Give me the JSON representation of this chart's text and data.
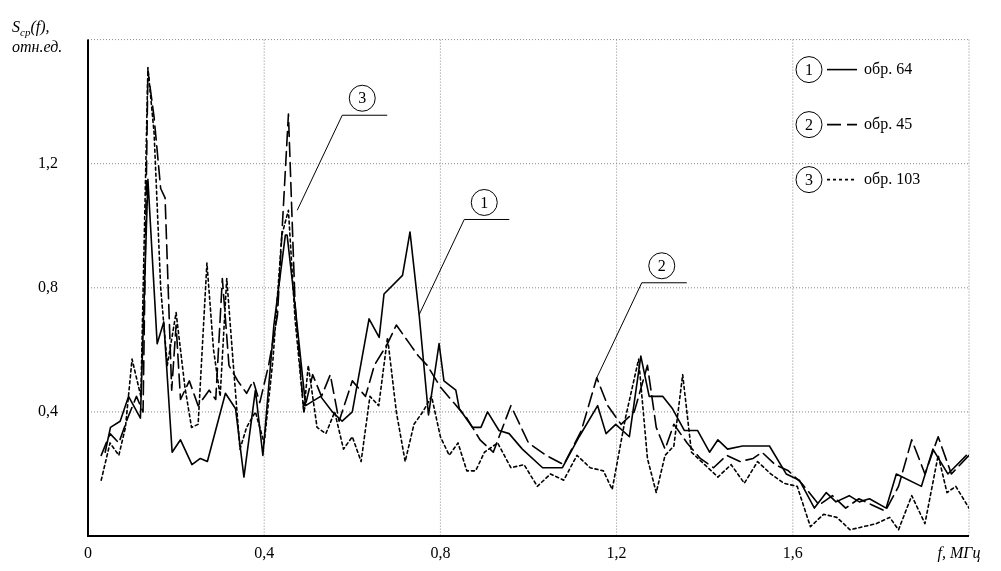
{
  "chart_data": {
    "type": "line",
    "xlabel": "f, МГц",
    "ylabel": "S$_{ср}$(f), отн.ед.",
    "xlim": [
      0,
      2.0
    ],
    "ylim": [
      0,
      1.6
    ],
    "xticks": [
      0,
      {
        "value": 0.4,
        "label": "0,4"
      },
      {
        "value": 0.8,
        "label": "0,8"
      },
      {
        "value": 1.2,
        "label": "1,2"
      },
      {
        "value": 1.6,
        "label": "1,6"
      },
      {
        "value": 2.0,
        "label": null
      }
    ],
    "yticks": [
      {
        "value": 0.4,
        "label": "0,4"
      },
      {
        "value": 0.8,
        "label": "0,8"
      },
      {
        "value": 1.2,
        "label": "1,2"
      },
      {
        "value": 1.6,
        "label": null
      }
    ],
    "grid": true,
    "legend": "top right",
    "marker": "none",
    "series": [
      {
        "name": "обр. 64",
        "color": "#000000",
        "line_style": "solid",
        "x": [
          0.039,
          0.051,
          0.073,
          0.092,
          0.119,
          0.136,
          0.157,
          0.172,
          0.191,
          0.21,
          0.236,
          0.255,
          0.271,
          0.312,
          0.335,
          0.354,
          0.38,
          0.397,
          0.422,
          0.448,
          0.452,
          0.471,
          0.494,
          0.528,
          0.555,
          0.577,
          0.6,
          0.638,
          0.661,
          0.672,
          0.714,
          0.731,
          0.752,
          0.773,
          0.797,
          0.808,
          0.835,
          0.843,
          0.873,
          0.892,
          0.907,
          0.933,
          0.956,
          0.986,
          1.032,
          1.077,
          1.115,
          1.157,
          1.176,
          1.198,
          1.229,
          1.255,
          1.274,
          1.305,
          1.327,
          1.354,
          1.384,
          1.411,
          1.43,
          1.452,
          1.486,
          1.517,
          1.547,
          1.585,
          1.615,
          1.649,
          1.676,
          1.698,
          1.728,
          1.751,
          1.774,
          1.812,
          1.835,
          1.892,
          1.918,
          1.952,
          1.994
        ],
        "values": [
          0.27,
          0.35,
          0.37,
          0.45,
          0.38,
          1.15,
          0.62,
          0.69,
          0.27,
          0.31,
          0.23,
          0.25,
          0.24,
          0.46,
          0.41,
          0.19,
          0.47,
          0.26,
          0.68,
          0.97,
          0.97,
          0.73,
          0.42,
          0.45,
          0.4,
          0.37,
          0.4,
          0.7,
          0.64,
          0.78,
          0.84,
          0.98,
          0.71,
          0.39,
          0.62,
          0.5,
          0.47,
          0.41,
          0.35,
          0.35,
          0.4,
          0.34,
          0.33,
          0.28,
          0.22,
          0.22,
          0.32,
          0.42,
          0.33,
          0.36,
          0.32,
          0.58,
          0.45,
          0.45,
          0.41,
          0.34,
          0.34,
          0.27,
          0.31,
          0.28,
          0.29,
          0.29,
          0.29,
          0.2,
          0.18,
          0.09,
          0.14,
          0.11,
          0.13,
          0.11,
          0.12,
          0.09,
          0.2,
          0.16,
          0.28,
          0.2,
          0.26
        ]
      },
      {
        "name": "обр. 45",
        "color": "#000000",
        "line_style": "dashed",
        "x": [
          0.03,
          0.05,
          0.07,
          0.09,
          0.11,
          0.125,
          0.136,
          0.15,
          0.165,
          0.175,
          0.19,
          0.2,
          0.21,
          0.23,
          0.25,
          0.275,
          0.29,
          0.305,
          0.32,
          0.34,
          0.36,
          0.375,
          0.39,
          0.41,
          0.43,
          0.455,
          0.47,
          0.49,
          0.51,
          0.53,
          0.55,
          0.57,
          0.6,
          0.63,
          0.65,
          0.68,
          0.7,
          0.73,
          0.75,
          0.77,
          0.8,
          0.83,
          0.86,
          0.89,
          0.92,
          0.96,
          1.0,
          1.04,
          1.08,
          1.12,
          1.155,
          1.18,
          1.21,
          1.24,
          1.27,
          1.29,
          1.31,
          1.33,
          1.36,
          1.39,
          1.42,
          1.45,
          1.48,
          1.51,
          1.53,
          1.56,
          1.59,
          1.62,
          1.66,
          1.69,
          1.72,
          1.75,
          1.78,
          1.81,
          1.84,
          1.87,
          1.9,
          1.93,
          1.96,
          2.0
        ],
        "values": [
          0.26,
          0.33,
          0.3,
          0.38,
          0.45,
          0.4,
          1.5,
          1.35,
          1.12,
          1.09,
          0.47,
          0.68,
          0.44,
          0.5,
          0.42,
          0.47,
          0.44,
          0.83,
          0.55,
          0.5,
          0.46,
          0.5,
          0.43,
          0.55,
          0.71,
          1.36,
          0.75,
          0.4,
          0.52,
          0.45,
          0.52,
          0.37,
          0.5,
          0.45,
          0.55,
          0.62,
          0.68,
          0.62,
          0.58,
          0.55,
          0.48,
          0.43,
          0.38,
          0.31,
          0.27,
          0.42,
          0.3,
          0.26,
          0.23,
          0.34,
          0.51,
          0.42,
          0.36,
          0.4,
          0.55,
          0.35,
          0.28,
          0.36,
          0.3,
          0.25,
          0.22,
          0.26,
          0.24,
          0.25,
          0.27,
          0.23,
          0.21,
          0.17,
          0.1,
          0.13,
          0.09,
          0.12,
          0.1,
          0.08,
          0.16,
          0.31,
          0.2,
          0.32,
          0.2,
          0.26
        ]
      },
      {
        "name": "обр. 103",
        "color": "#000000",
        "line_style": "dotted",
        "x": [
          0.03,
          0.05,
          0.07,
          0.085,
          0.1,
          0.12,
          0.136,
          0.15,
          0.165,
          0.18,
          0.2,
          0.22,
          0.235,
          0.25,
          0.27,
          0.285,
          0.3,
          0.315,
          0.33,
          0.345,
          0.36,
          0.38,
          0.4,
          0.42,
          0.44,
          0.455,
          0.47,
          0.49,
          0.5,
          0.52,
          0.54,
          0.56,
          0.58,
          0.6,
          0.62,
          0.64,
          0.66,
          0.68,
          0.7,
          0.72,
          0.74,
          0.76,
          0.78,
          0.8,
          0.82,
          0.84,
          0.86,
          0.88,
          0.9,
          0.93,
          0.96,
          0.99,
          1.02,
          1.05,
          1.08,
          1.11,
          1.14,
          1.17,
          1.19,
          1.22,
          1.25,
          1.27,
          1.29,
          1.31,
          1.33,
          1.35,
          1.37,
          1.4,
          1.43,
          1.46,
          1.49,
          1.52,
          1.55,
          1.58,
          1.61,
          1.64,
          1.67,
          1.7,
          1.73,
          1.76,
          1.79,
          1.82,
          1.84,
          1.87,
          1.9,
          1.93,
          1.95,
          1.97,
          2.0
        ],
        "values": [
          0.18,
          0.3,
          0.26,
          0.35,
          0.57,
          0.45,
          1.51,
          1.3,
          0.8,
          0.55,
          0.72,
          0.48,
          0.35,
          0.36,
          0.88,
          0.6,
          0.45,
          0.83,
          0.55,
          0.28,
          0.35,
          0.4,
          0.3,
          0.57,
          0.97,
          1.05,
          0.7,
          0.4,
          0.55,
          0.35,
          0.33,
          0.4,
          0.28,
          0.32,
          0.24,
          0.45,
          0.42,
          0.64,
          0.4,
          0.24,
          0.36,
          0.4,
          0.45,
          0.32,
          0.26,
          0.3,
          0.21,
          0.21,
          0.27,
          0.3,
          0.22,
          0.23,
          0.16,
          0.2,
          0.18,
          0.26,
          0.22,
          0.21,
          0.15,
          0.38,
          0.57,
          0.25,
          0.14,
          0.26,
          0.29,
          0.52,
          0.27,
          0.23,
          0.19,
          0.23,
          0.17,
          0.24,
          0.2,
          0.17,
          0.16,
          0.03,
          0.07,
          0.06,
          0.02,
          0.03,
          0.04,
          0.06,
          0.02,
          0.13,
          0.04,
          0.26,
          0.14,
          0.16,
          0.09
        ]
      }
    ],
    "annotations": [
      {
        "text": "1",
        "x": 0.752,
        "y": 0.714
      },
      {
        "text": "2",
        "x": 1.155,
        "y": 0.51
      },
      {
        "text": "3",
        "x": 0.475,
        "y": 1.05
      }
    ]
  }
}
